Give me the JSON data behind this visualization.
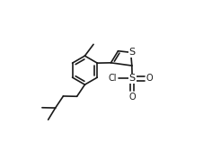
{
  "bg_color": "#ffffff",
  "line_color": "#1a1a1a",
  "line_width": 1.2,
  "font_size": 7.0,
  "S_thio": "S",
  "S_sulfonyl": "S",
  "Cl_label": "Cl",
  "O_label": "O"
}
